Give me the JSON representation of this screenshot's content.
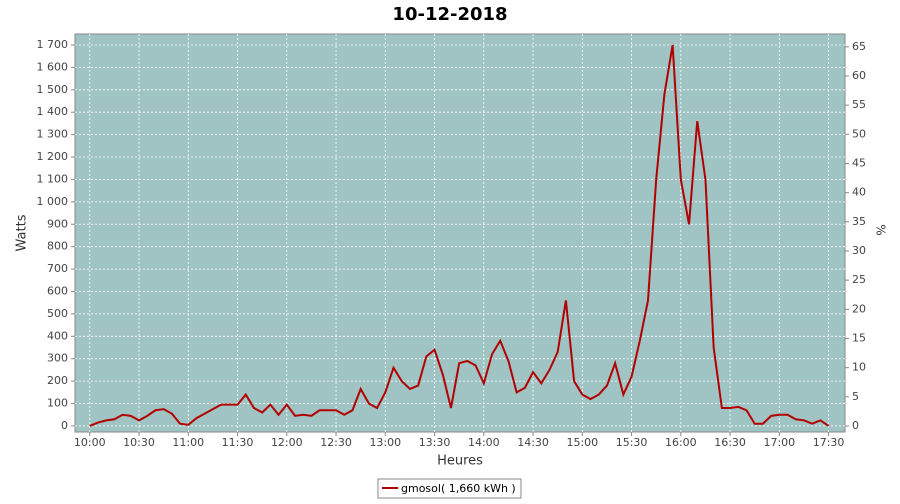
{
  "chart_data": {
    "type": "line",
    "title": "10-12-2018",
    "x_label": "Heures",
    "y_label": "Watts",
    "y2_label": "%",
    "x": [
      "10:00",
      "10:05",
      "10:10",
      "10:15",
      "10:20",
      "10:25",
      "10:30",
      "10:35",
      "10:40",
      "10:45",
      "10:50",
      "10:55",
      "11:00",
      "11:05",
      "11:10",
      "11:15",
      "11:20",
      "11:25",
      "11:30",
      "11:35",
      "11:40",
      "11:45",
      "11:50",
      "11:55",
      "12:00",
      "12:05",
      "12:10",
      "12:15",
      "12:20",
      "12:25",
      "12:30",
      "12:35",
      "12:40",
      "12:45",
      "12:50",
      "12:55",
      "13:00",
      "13:05",
      "13:10",
      "13:15",
      "13:20",
      "13:25",
      "13:30",
      "13:35",
      "13:40",
      "13:45",
      "13:50",
      "13:55",
      "14:00",
      "14:05",
      "14:10",
      "14:15",
      "14:20",
      "14:25",
      "14:30",
      "14:35",
      "14:40",
      "14:45",
      "14:50",
      "14:55",
      "15:00",
      "15:05",
      "15:10",
      "15:15",
      "15:20",
      "15:25",
      "15:30",
      "15:35",
      "15:40",
      "15:45",
      "15:50",
      "15:55",
      "16:00",
      "16:05",
      "16:10",
      "16:15",
      "16:20",
      "16:25",
      "16:30",
      "16:35",
      "16:40",
      "16:45",
      "16:50",
      "16:55",
      "17:00",
      "17:05",
      "17:10",
      "17:15",
      "17:20",
      "17:25",
      "17:30"
    ],
    "series": [
      {
        "name": "gmosol( 1,660 kWh )",
        "color": "#b20000",
        "values": [
          0,
          15,
          25,
          30,
          50,
          45,
          25,
          45,
          70,
          75,
          55,
          10,
          5,
          35,
          55,
          75,
          95,
          95,
          95,
          140,
          80,
          60,
          95,
          50,
          95,
          45,
          50,
          45,
          70,
          70,
          70,
          50,
          70,
          165,
          100,
          80,
          150,
          260,
          200,
          165,
          180,
          310,
          340,
          230,
          80,
          280,
          290,
          270,
          190,
          320,
          380,
          290,
          150,
          170,
          240,
          190,
          250,
          330,
          560,
          200,
          140,
          120,
          140,
          180,
          280,
          140,
          220,
          380,
          560,
          1100,
          1480,
          1700,
          1100,
          900,
          1360,
          1100,
          350,
          80,
          80,
          85,
          70,
          10,
          10,
          45,
          50,
          50,
          30,
          25,
          10,
          25,
          0
        ]
      }
    ],
    "xlim": [
      "09:51",
      "17:40"
    ],
    "xticks": [
      "10:00",
      "10:30",
      "11:00",
      "11:30",
      "12:00",
      "12:30",
      "13:00",
      "13:30",
      "14:00",
      "14:30",
      "15:00",
      "15:30",
      "16:00",
      "16:30",
      "17:00",
      "17:30"
    ],
    "ylim": [
      -27,
      1749
    ],
    "yticks": [
      0,
      100,
      200,
      300,
      400,
      500,
      600,
      700,
      800,
      900,
      {
        "value": 1000,
        "label": "1 000"
      },
      {
        "value": 1100,
        "label": "1 100"
      },
      {
        "value": 1200,
        "label": "1 200"
      },
      {
        "value": 1300,
        "label": "1 300"
      },
      {
        "value": 1400,
        "label": "1 400"
      },
      {
        "value": 1500,
        "label": "1 500"
      },
      {
        "value": 1600,
        "label": "1 600"
      },
      {
        "value": 1700,
        "label": "1 700"
      }
    ],
    "y2lim": [
      -1.03,
      67.2
    ],
    "y2ticks": [
      0,
      5,
      10,
      15,
      20,
      25,
      30,
      35,
      40,
      45,
      50,
      55,
      60,
      65
    ],
    "grid": true,
    "plot_background": "#9fc4c3"
  }
}
